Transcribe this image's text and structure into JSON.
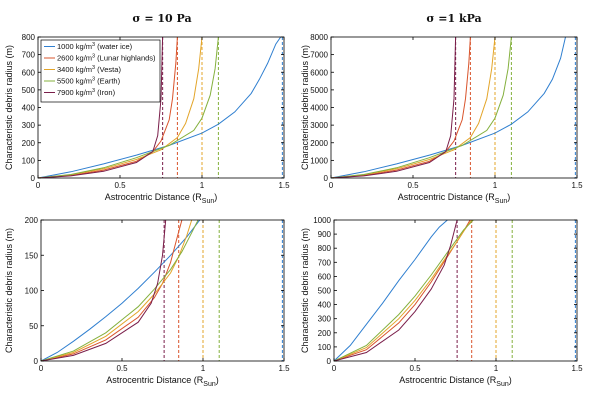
{
  "chart_data": [
    {
      "type": "line",
      "title": "σ = 10 Pa",
      "xlabel_main": "Astrocentric Distance (R",
      "xlabel_sub": "Sun",
      "xlabel_tail": ")",
      "ylabel": "Characteristic debris radius (m)",
      "xlim": [
        0,
        1.5
      ],
      "ylim": [
        0,
        800
      ],
      "xticks": [
        0,
        0.5,
        1,
        1.5
      ],
      "xtick_labels": [
        "0",
        "0.5",
        "1",
        "1.5"
      ],
      "yticks": [
        0,
        100,
        200,
        300,
        400,
        500,
        600,
        700,
        800
      ],
      "legend": [
        {
          "pre": "1000 kg/m",
          "sup": "3",
          "post": " (water ice)",
          "color": "#2f7fd0"
        },
        {
          "pre": "2600 kg/m",
          "sup": "3",
          "post": " (Lunar highlands)",
          "color": "#d9542c"
        },
        {
          "pre": "3400 kg/m",
          "sup": "3",
          "post": " (Vesta)",
          "color": "#e3a52a"
        },
        {
          "pre": "5500 kg/m",
          "sup": "3",
          "post": " (Earth)",
          "color": "#84b03d"
        },
        {
          "pre": "7900 kg/m",
          "sup": "3",
          "post": " (Iron)",
          "color": "#7a1e4a"
        }
      ],
      "series": [
        {
          "color": "#2f7fd0",
          "asymptote": 1.49,
          "x": [
            0,
            0.2,
            0.4,
            0.6,
            0.8,
            1.0,
            1.1,
            1.2,
            1.3,
            1.35,
            1.4,
            1.45,
            1.48
          ],
          "y": [
            0,
            35,
            80,
            130,
            185,
            255,
            305,
            375,
            480,
            560,
            650,
            760,
            800
          ]
        },
        {
          "color": "#d9542c",
          "asymptote": 0.85,
          "x": [
            0,
            0.2,
            0.4,
            0.6,
            0.7,
            0.75,
            0.8,
            0.82,
            0.84,
            0.85
          ],
          "y": [
            0,
            15,
            45,
            95,
            150,
            210,
            330,
            450,
            650,
            800
          ]
        },
        {
          "color": "#e3a52a",
          "asymptote": 1.0,
          "x": [
            0,
            0.2,
            0.4,
            0.6,
            0.75,
            0.85,
            0.9,
            0.95,
            0.98,
            1.0
          ],
          "y": [
            0,
            18,
            52,
            105,
            160,
            230,
            310,
            450,
            620,
            800
          ]
        },
        {
          "color": "#84b03d",
          "asymptote": 1.1,
          "x": [
            0,
            0.2,
            0.4,
            0.6,
            0.8,
            0.95,
            1.0,
            1.05,
            1.08,
            1.1
          ],
          "y": [
            0,
            20,
            58,
            115,
            185,
            270,
            340,
            470,
            620,
            800
          ]
        },
        {
          "color": "#7a1e4a",
          "asymptote": 0.76,
          "x": [
            0,
            0.2,
            0.4,
            0.6,
            0.7,
            0.73,
            0.75,
            0.76
          ],
          "y": [
            0,
            12,
            38,
            88,
            150,
            240,
            450,
            800
          ]
        }
      ]
    },
    {
      "type": "line",
      "title": "σ =1 kPa",
      "xlabel_main": "Astrocentric Distance (R",
      "xlabel_sub": "Sun",
      "xlabel_tail": ")",
      "ylabel": "Characteristic debris radius (m)",
      "xlim": [
        0,
        1.5
      ],
      "ylim": [
        0,
        8000
      ],
      "xticks": [
        0,
        0.5,
        1,
        1.5
      ],
      "xtick_labels": [
        "0",
        "0.5",
        "1",
        "1.5"
      ],
      "yticks": [
        0,
        1000,
        2000,
        3000,
        4000,
        5000,
        6000,
        7000,
        8000
      ],
      "series": [
        {
          "color": "#2f7fd0",
          "asymptote": 1.49,
          "x": [
            0,
            0.2,
            0.4,
            0.6,
            0.8,
            1.0,
            1.1,
            1.2,
            1.3,
            1.35,
            1.4,
            1.43
          ],
          "y": [
            0,
            350,
            800,
            1300,
            1850,
            2550,
            3050,
            3750,
            4800,
            5600,
            6800,
            8000
          ]
        },
        {
          "color": "#d9542c",
          "asymptote": 0.85,
          "x": [
            0,
            0.2,
            0.4,
            0.6,
            0.7,
            0.75,
            0.8,
            0.82,
            0.84,
            0.85
          ],
          "y": [
            0,
            150,
            450,
            950,
            1500,
            2100,
            3300,
            4500,
            6500,
            8000
          ]
        },
        {
          "color": "#e3a52a",
          "asymptote": 1.0,
          "x": [
            0,
            0.2,
            0.4,
            0.6,
            0.75,
            0.85,
            0.9,
            0.95,
            0.98,
            1.0
          ],
          "y": [
            0,
            180,
            520,
            1050,
            1600,
            2300,
            3100,
            4500,
            6200,
            8000
          ]
        },
        {
          "color": "#84b03d",
          "asymptote": 1.1,
          "x": [
            0,
            0.2,
            0.4,
            0.6,
            0.8,
            0.95,
            1.0,
            1.05,
            1.08,
            1.1
          ],
          "y": [
            0,
            200,
            580,
            1150,
            1850,
            2700,
            3400,
            4700,
            6200,
            8000
          ]
        },
        {
          "color": "#7a1e4a",
          "asymptote": 0.76,
          "x": [
            0,
            0.2,
            0.4,
            0.6,
            0.7,
            0.73,
            0.75,
            0.76
          ],
          "y": [
            0,
            120,
            380,
            880,
            1500,
            2400,
            4500,
            8000
          ]
        }
      ]
    },
    {
      "type": "line",
      "xlabel_main": "Astrocentric Distance (R",
      "xlabel_sub": "Sun",
      "xlabel_tail": ")",
      "ylabel": "Characteristic debris radius (m)",
      "xlim": [
        0,
        1.5
      ],
      "ylim": [
        0,
        200
      ],
      "xticks": [
        0,
        0.5,
        1,
        1.5
      ],
      "xtick_labels": [
        "0",
        "0.5",
        "1",
        "1.5"
      ],
      "yticks": [
        0,
        50,
        100,
        150,
        200
      ],
      "series": [
        {
          "color": "#2f7fd0",
          "asymptote": 1.49,
          "x": [
            0,
            0.1,
            0.2,
            0.3,
            0.4,
            0.5,
            0.6,
            0.7,
            0.8,
            0.9,
            0.98
          ],
          "y": [
            0,
            12,
            28,
            45,
            63,
            82,
            103,
            126,
            150,
            176,
            200
          ]
        },
        {
          "color": "#d9542c",
          "asymptote": 0.85,
          "x": [
            0,
            0.2,
            0.4,
            0.6,
            0.7,
            0.75,
            0.8,
            0.84,
            0.87
          ],
          "y": [
            0,
            10,
            30,
            62,
            90,
            110,
            140,
            175,
            200
          ]
        },
        {
          "color": "#e3a52a",
          "asymptote": 1.0,
          "x": [
            0,
            0.2,
            0.4,
            0.6,
            0.7,
            0.8,
            0.85,
            0.9,
            0.93
          ],
          "y": [
            0,
            12,
            35,
            70,
            95,
            125,
            148,
            178,
            200
          ]
        },
        {
          "color": "#84b03d",
          "asymptote": 1.1,
          "x": [
            0,
            0.2,
            0.4,
            0.6,
            0.7,
            0.8,
            0.87,
            0.93,
            0.97
          ],
          "y": [
            0,
            14,
            40,
            77,
            102,
            130,
            155,
            182,
            200
          ]
        },
        {
          "color": "#7a1e4a",
          "asymptote": 0.76,
          "x": [
            0,
            0.2,
            0.4,
            0.6,
            0.68,
            0.72,
            0.75,
            0.77
          ],
          "y": [
            0,
            8,
            25,
            55,
            82,
            110,
            150,
            200
          ]
        }
      ]
    },
    {
      "type": "line",
      "xlabel_main": "Astrocentric Distance (R",
      "xlabel_sub": "Sun",
      "xlabel_tail": ")",
      "ylabel": "Characteristic debris radius (m)",
      "xlim": [
        0,
        1.5
      ],
      "ylim": [
        0,
        1000
      ],
      "xticks": [
        0,
        0.5,
        1,
        1.5
      ],
      "xtick_labels": [
        "0",
        "0.5",
        "1",
        "1.5"
      ],
      "yticks": [
        0,
        100,
        200,
        300,
        400,
        500,
        600,
        700,
        800,
        900,
        1000
      ],
      "series": [
        {
          "color": "#2f7fd0",
          "asymptote": 1.49,
          "x": [
            0,
            0.1,
            0.2,
            0.3,
            0.4,
            0.5,
            0.6,
            0.65,
            0.7
          ],
          "y": [
            0,
            110,
            260,
            410,
            570,
            720,
            880,
            950,
            1000
          ]
        },
        {
          "color": "#d9542c",
          "asymptote": 0.85,
          "x": [
            0,
            0.2,
            0.4,
            0.5,
            0.6,
            0.7,
            0.75,
            0.8,
            0.84
          ],
          "y": [
            0,
            80,
            270,
            400,
            560,
            740,
            830,
            920,
            1000
          ]
        },
        {
          "color": "#e3a52a",
          "asymptote": 1.0,
          "x": [
            0,
            0.2,
            0.4,
            0.5,
            0.6,
            0.7,
            0.75,
            0.8,
            0.85
          ],
          "y": [
            0,
            95,
            300,
            430,
            580,
            750,
            830,
            920,
            1000
          ]
        },
        {
          "color": "#84b03d",
          "asymptote": 1.1,
          "x": [
            0,
            0.2,
            0.4,
            0.5,
            0.6,
            0.7,
            0.75,
            0.8,
            0.86
          ],
          "y": [
            0,
            110,
            330,
            460,
            610,
            770,
            850,
            930,
            1000
          ]
        },
        {
          "color": "#7a1e4a",
          "asymptote": 0.76,
          "x": [
            0,
            0.2,
            0.4,
            0.5,
            0.6,
            0.68,
            0.72,
            0.76
          ],
          "y": [
            0,
            60,
            220,
            350,
            510,
            680,
            820,
            1000
          ]
        }
      ]
    }
  ]
}
